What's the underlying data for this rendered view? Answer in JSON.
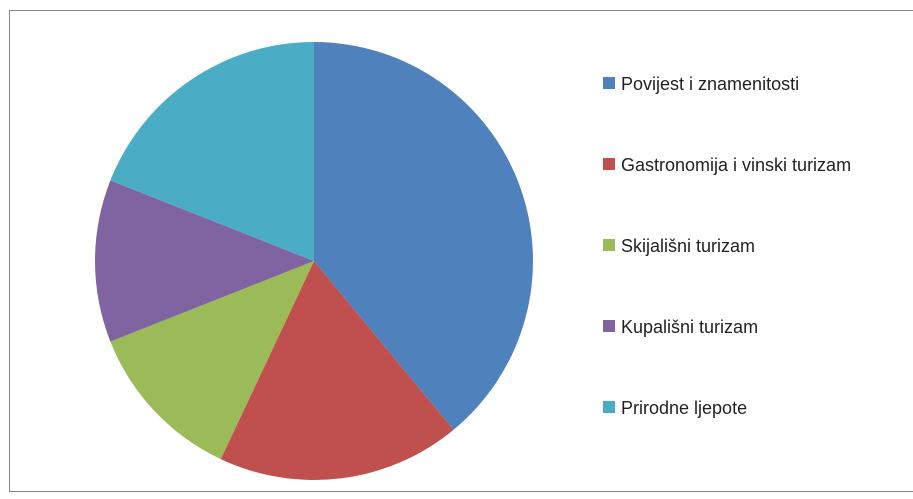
{
  "chart_data": {
    "type": "pie",
    "categories": [
      "Povijest i znamenitosti",
      "Gastronomija i vinski turizam",
      "Skijališni turizam",
      "Kupališni turizam",
      "Prirodne ljepote"
    ],
    "values": [
      39,
      18,
      12,
      12,
      19
    ],
    "colors": [
      "#4f81bd",
      "#c0504d",
      "#9bbb59",
      "#8064a2",
      "#4bacc6"
    ],
    "legend": "right"
  }
}
